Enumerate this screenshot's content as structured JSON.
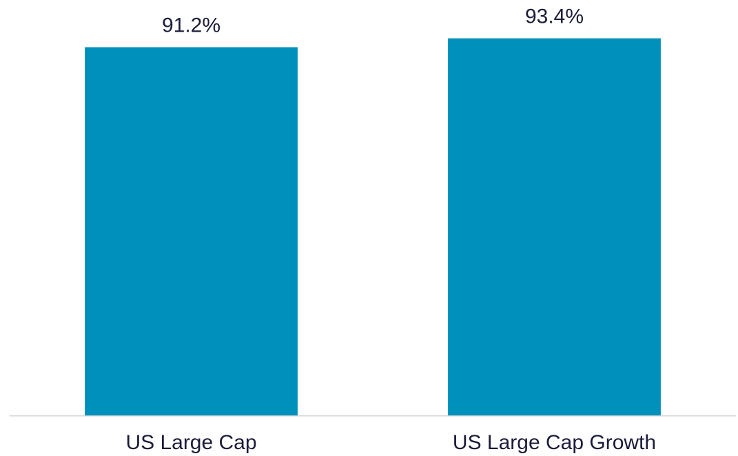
{
  "chart_data": {
    "type": "bar",
    "categories": [
      "US Large Cap",
      "US Large Cap Growth"
    ],
    "values": [
      91.2,
      93.4
    ],
    "value_labels": [
      "91.2%",
      "93.4%"
    ],
    "color": "#0090bc",
    "ylim": [
      0,
      100
    ]
  }
}
